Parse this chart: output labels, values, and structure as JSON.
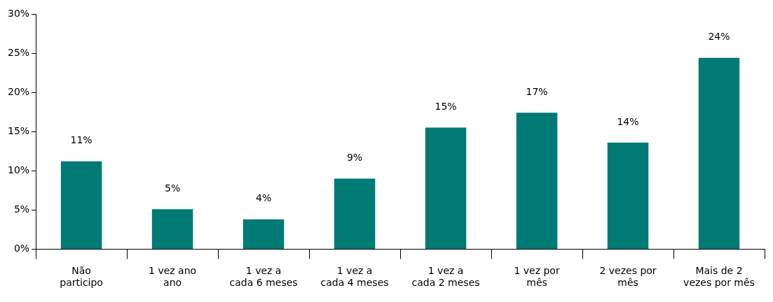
{
  "chart_data": {
    "type": "bar",
    "categories": [
      "Não participo",
      "1 vez ano ano",
      "1 vez a cada 6 meses",
      "1 vez a cada 4 meses",
      "1 vez a cada 2 meses",
      "1 vez por mês",
      "2 vezes por mês",
      "Mais de 2 vezes por mês"
    ],
    "values": [
      11.2,
      5.1,
      3.8,
      9.0,
      15.5,
      17.4,
      13.6,
      24.4
    ],
    "value_labels": [
      "11%",
      "5%",
      "4%",
      "9%",
      "15%",
      "17%",
      "14%",
      "24%"
    ],
    "color": "#007a74",
    "ylim": [
      0,
      30
    ],
    "yticks": [
      {
        "value": 0,
        "label": "0%"
      },
      {
        "value": 5,
        "label": "5%"
      },
      {
        "value": 10,
        "label": "10%"
      },
      {
        "value": 15,
        "label": "15%"
      },
      {
        "value": 20,
        "label": "20%"
      },
      {
        "value": 25,
        "label": "25%"
      },
      {
        "value": 30,
        "label": "30%"
      }
    ],
    "grid": false,
    "legend": false
  }
}
